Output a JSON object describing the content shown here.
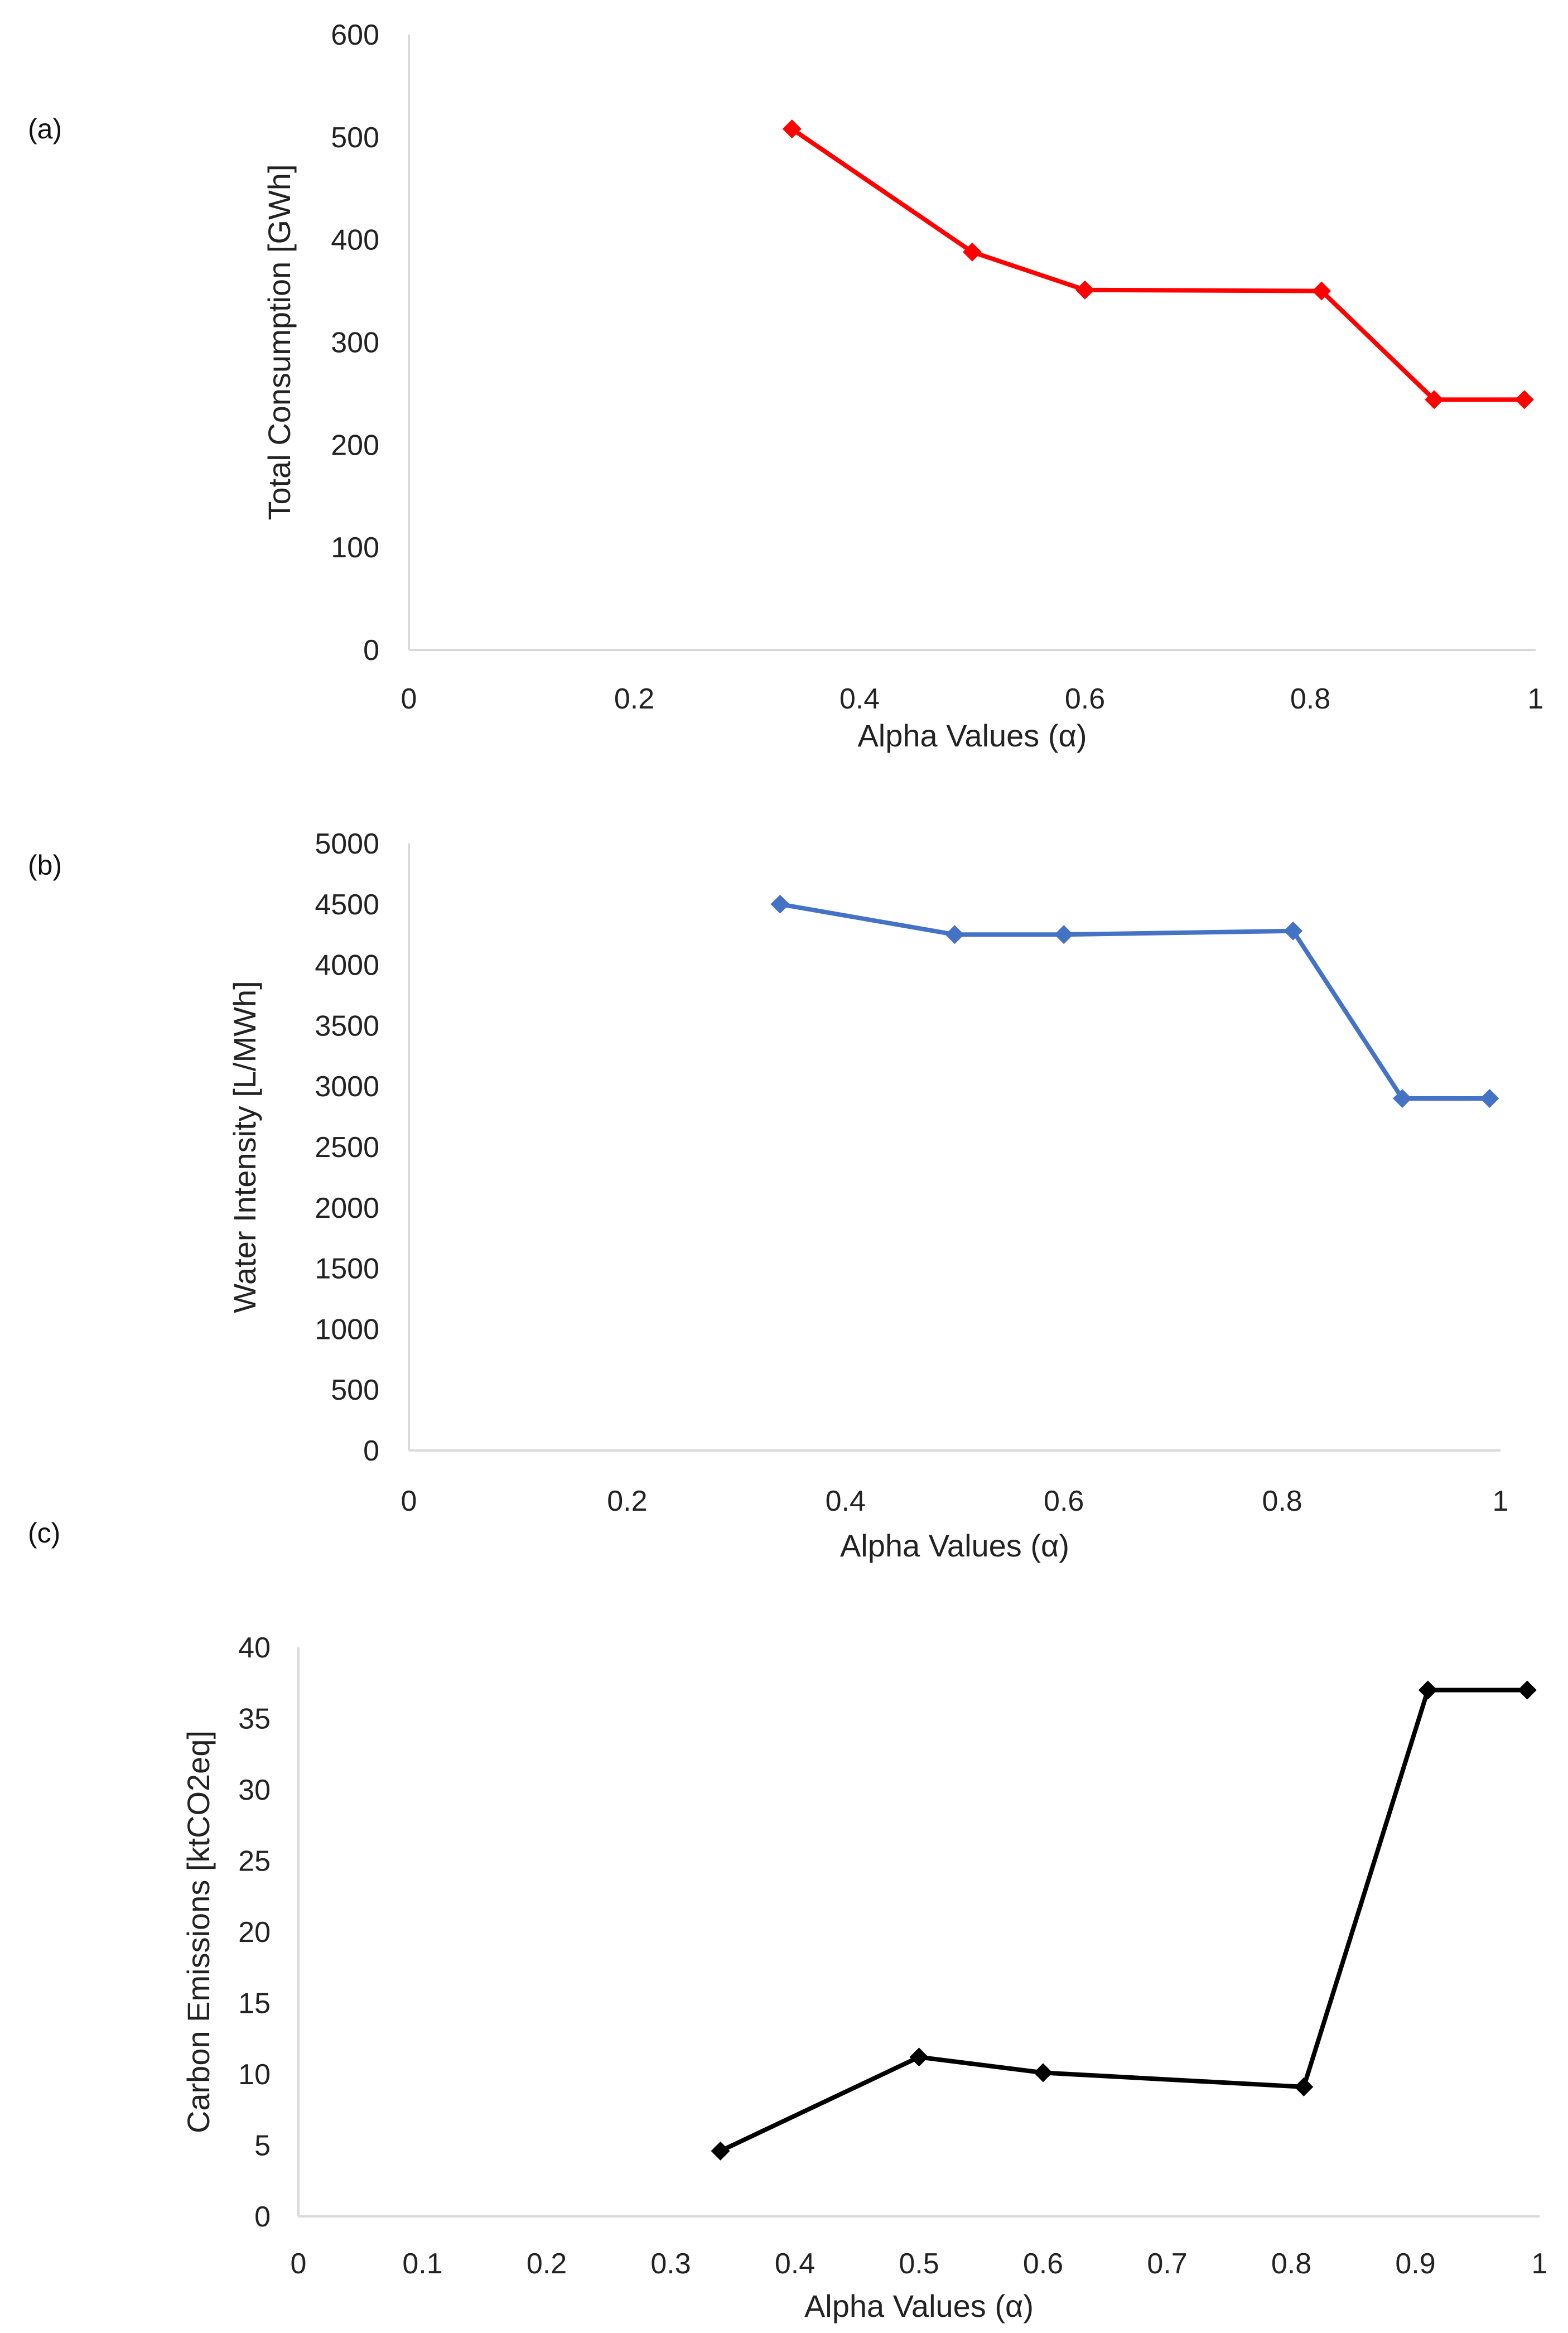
{
  "chart_data": [
    {
      "type": "line",
      "panel_label": "(a)",
      "title": "",
      "xlabel": "Alpha Values (α)",
      "ylabel": "Total Consumption [GWh]",
      "xlim": [
        0,
        1
      ],
      "ylim": [
        0,
        600
      ],
      "xticks": [
        0,
        0.2,
        0.4,
        0.6,
        0.8,
        1
      ],
      "xtick_labels": [
        "0",
        "0.2",
        "0.4",
        "0.6",
        "0.8",
        "1"
      ],
      "yticks": [
        0,
        100,
        200,
        300,
        400,
        500,
        600
      ],
      "ytick_labels": [
        "0",
        "100",
        "200",
        "300",
        "400",
        "500",
        "600"
      ],
      "grid": false,
      "series": [
        {
          "name": "Total Consumption",
          "color": "#ff0000",
          "marker": "diamond",
          "x": [
            0.34,
            0.5,
            0.6,
            0.81,
            0.91,
            0.99
          ],
          "values": [
            508,
            388,
            351,
            350,
            244,
            244
          ]
        }
      ]
    },
    {
      "type": "line",
      "panel_label": "(b)",
      "title": "",
      "xlabel": "Alpha Values (α)",
      "ylabel": "Water Intensity [L/MWh]",
      "xlim": [
        0,
        1
      ],
      "ylim": [
        0,
        5000
      ],
      "xticks": [
        0,
        0.2,
        0.4,
        0.6,
        0.8,
        1
      ],
      "xtick_labels": [
        "0",
        "0.2",
        "0.4",
        "0.6",
        "0.8",
        "1"
      ],
      "yticks": [
        0,
        500,
        1000,
        1500,
        2000,
        2500,
        3000,
        3500,
        4000,
        4500,
        5000
      ],
      "ytick_labels": [
        "0",
        "500",
        "1000",
        "1500",
        "2000",
        "2500",
        "3000",
        "3500",
        "4000",
        "4500",
        "5000"
      ],
      "grid": false,
      "series": [
        {
          "name": "Water Intensity",
          "color": "#4472c4",
          "marker": "diamond",
          "x": [
            0.34,
            0.5,
            0.6,
            0.81,
            0.91,
            0.99
          ],
          "values": [
            4500,
            4250,
            4250,
            4280,
            2900,
            2900
          ]
        }
      ]
    },
    {
      "type": "line",
      "panel_label": "(c)",
      "title": "",
      "xlabel": "Alpha Values (α)",
      "ylabel": "Carbon Emissions [ktCO2eq]",
      "xlim": [
        0,
        1
      ],
      "ylim": [
        0,
        40
      ],
      "xticks": [
        0,
        0.1,
        0.2,
        0.3,
        0.4,
        0.5,
        0.6,
        0.7,
        0.8,
        0.9,
        1
      ],
      "xtick_labels": [
        "0",
        "0.1",
        "0.2",
        "0.3",
        "0.4",
        "0.5",
        "0.6",
        "0.7",
        "0.8",
        "0.9",
        "1"
      ],
      "yticks": [
        0,
        5,
        10,
        15,
        20,
        25,
        30,
        35,
        40
      ],
      "ytick_labels": [
        "0",
        "5",
        "10",
        "15",
        "20",
        "25",
        "30",
        "35",
        "40"
      ],
      "grid": false,
      "series": [
        {
          "name": "Carbon Emissions",
          "color": "#000000",
          "marker": "diamond",
          "x": [
            0.34,
            0.5,
            0.6,
            0.81,
            0.91,
            0.99
          ],
          "values": [
            4.6,
            11.2,
            10.1,
            9.1,
            37,
            37
          ]
        }
      ]
    }
  ]
}
